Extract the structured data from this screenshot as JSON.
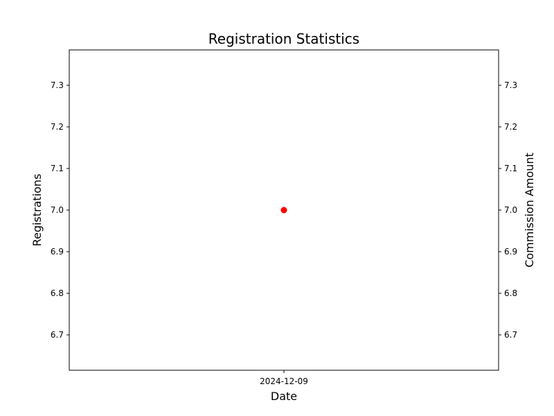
{
  "chart_data": {
    "type": "scatter",
    "title": "Registration Statistics",
    "xlabel": "Date",
    "ylabel_left": "Registrations",
    "ylabel_right": "Commission Amount",
    "x_categories": [
      "2024-12-09"
    ],
    "ylim": [
      6.615,
      7.385
    ],
    "yticks": [
      6.7,
      6.8,
      6.9,
      7.0,
      7.1,
      7.2,
      7.3
    ],
    "ytick_labels": [
      "6.7",
      "6.8",
      "6.9",
      "7.0",
      "7.1",
      "7.2",
      "7.3"
    ],
    "grid": false,
    "series": [
      {
        "name": "Registrations",
        "axis": "left",
        "x": [
          "2024-12-09"
        ],
        "values": [
          7
        ],
        "color": "#008000"
      },
      {
        "name": "Commission Amount",
        "axis": "right",
        "x": [
          "2024-12-09"
        ],
        "values": [
          7
        ],
        "color": "#ff0000"
      }
    ]
  }
}
